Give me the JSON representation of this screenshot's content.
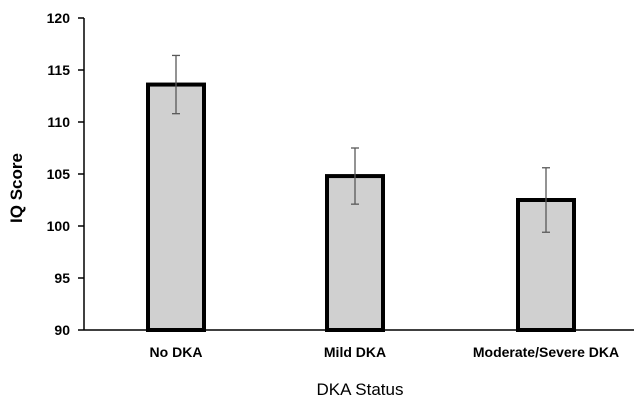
{
  "chart_data": {
    "type": "bar",
    "title": "",
    "xlabel": "DKA Status",
    "ylabel": "IQ Score",
    "categories": [
      "No DKA",
      "Mild DKA",
      "Moderate/Severe DKA"
    ],
    "values": [
      113.6,
      104.8,
      102.5
    ],
    "error": [
      2.8,
      2.7,
      3.1
    ],
    "ylim": [
      90,
      120
    ],
    "yticks": [
      90,
      95,
      100,
      105,
      110,
      115,
      120
    ],
    "grid": false,
    "legend": "none",
    "colors": {
      "bar_fill": "#d0d0d0",
      "bar_stroke": "#000000",
      "error_bar": "#595959",
      "axis": "#000000"
    }
  }
}
